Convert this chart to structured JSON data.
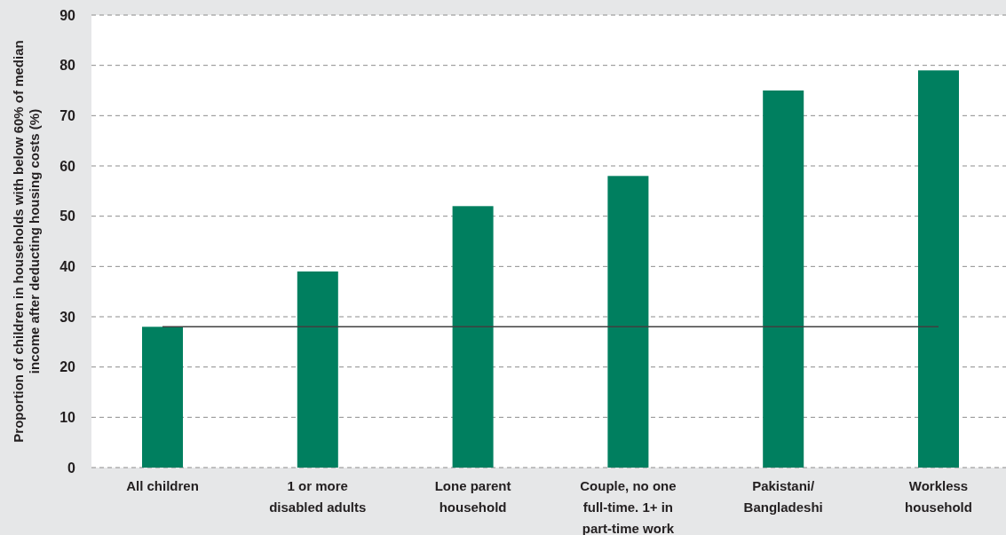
{
  "chart_data": {
    "type": "bar",
    "ylabel": "Proportion of children in households with below 60% of median income after deducting housing costs (%)",
    "categories": [
      "All children",
      "1 or more disabled adults",
      "Lone parent household",
      "Couple, no one full-time. 1+ in part-time work",
      "Pakistani/ Bangladeshi",
      "Workless household"
    ],
    "values": [
      28,
      39,
      52,
      58,
      75,
      79
    ],
    "color": "#007f5f",
    "ylim": [
      0,
      90
    ],
    "yticks": [
      0,
      10,
      20,
      30,
      40,
      50,
      60,
      70,
      80,
      90
    ],
    "grid": "y",
    "ref_lines": [
      {
        "axis": "y",
        "value": 28,
        "color": "#404040"
      }
    ]
  }
}
